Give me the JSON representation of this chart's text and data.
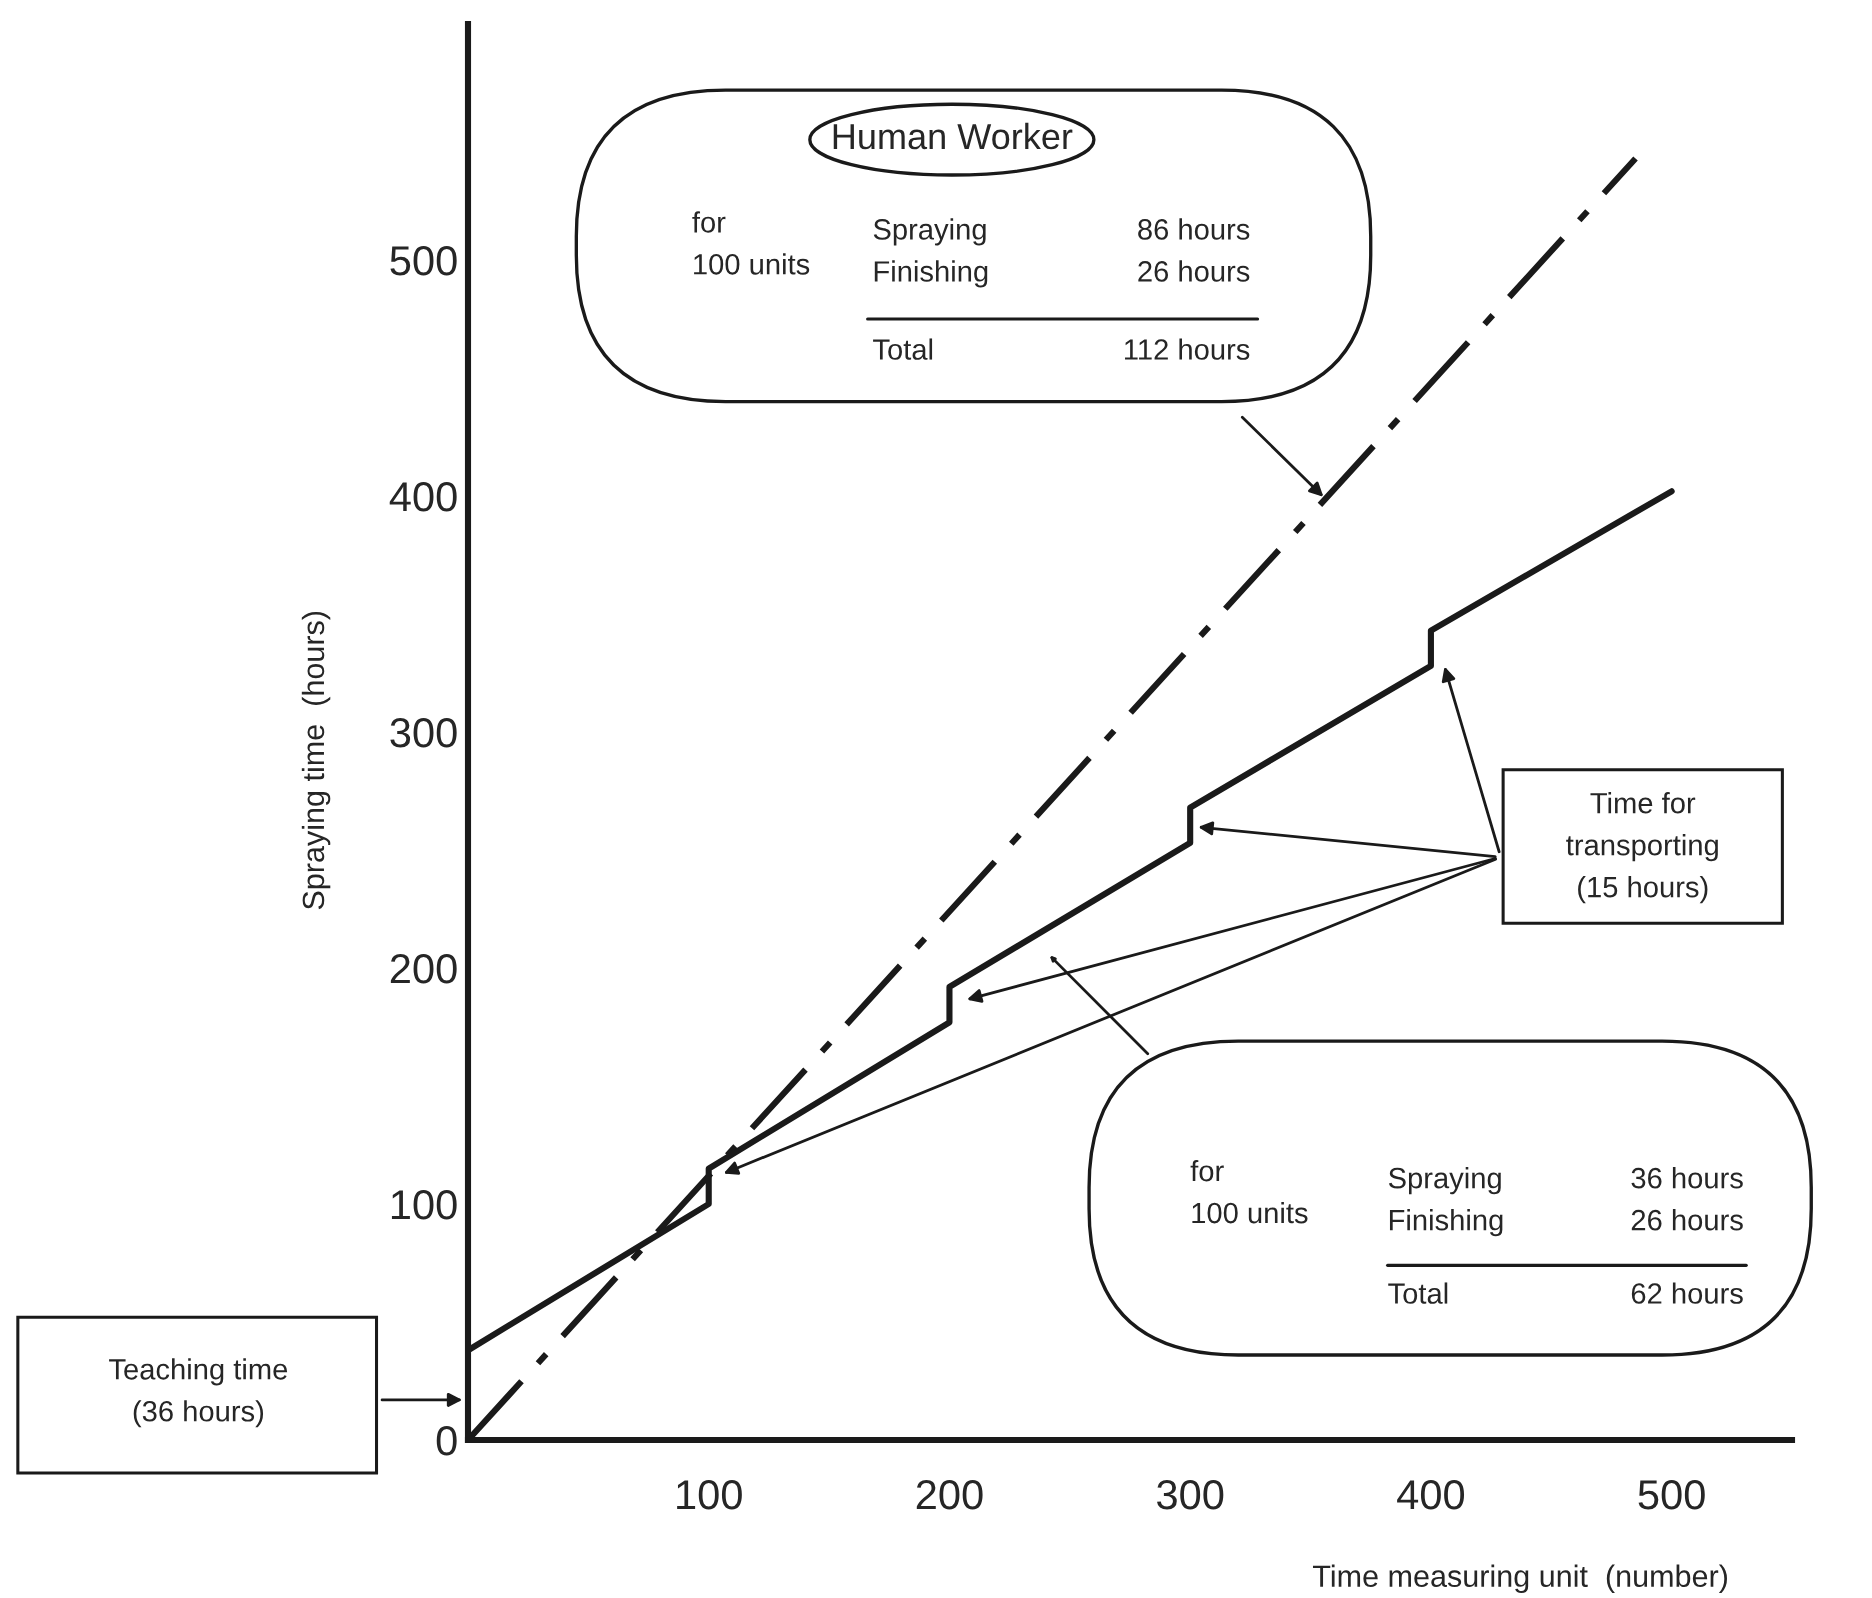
{
  "chart_data": {
    "type": "line",
    "xlabel": "Time measuring unit  (number)",
    "ylabel": "Spraying time  (hours)",
    "xlim": [
      0,
      550
    ],
    "ylim": [
      0,
      600
    ],
    "xticks": [
      100,
      200,
      300,
      400,
      500
    ],
    "yticks": [
      0,
      100,
      200,
      300,
      400,
      500
    ],
    "grid": false,
    "legend": false,
    "marker": "none",
    "series": [
      {
        "color": "#1a1a1a",
        "line_style": "dashed",
        "x": [
          0,
          485
        ],
        "values": [
          0,
          543
        ]
      },
      {
        "color": "#1a1a1a",
        "line_style": "solid",
        "x": [
          0,
          100,
          100,
          200,
          200,
          300,
          300,
          400,
          400,
          500
        ],
        "values": [
          38,
          100,
          115,
          177,
          192,
          253,
          268,
          328,
          343,
          402
        ]
      }
    ],
    "annotations": [
      "Human Worker",
      "for\n100 units",
      "Spraying\nFinishing",
      "86 hours\n26 hours",
      "Total",
      "112 hours",
      "Time for\ntransporting\n(15 hours)",
      "for\n100 units",
      "Spraying\nFinishing",
      "36 hours\n26 hours",
      "Total",
      "62 hours",
      "Teaching time\n(36 hours)"
    ]
  }
}
